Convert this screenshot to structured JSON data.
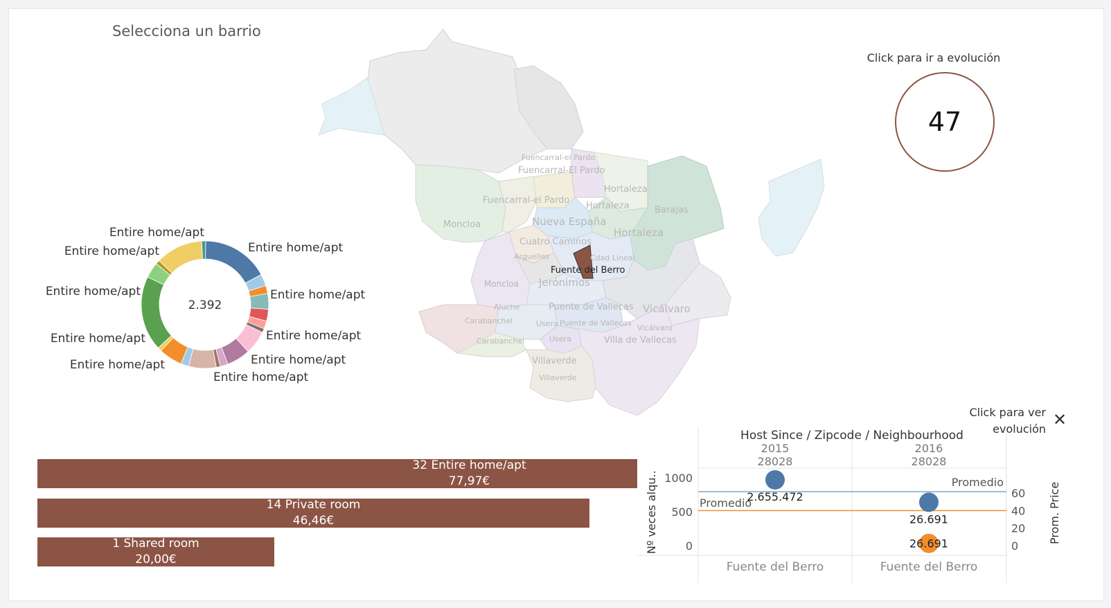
{
  "page_title": "Selecciona un barrio",
  "kpi": {
    "label": "Click para ir a evolución",
    "value": "47"
  },
  "donut": {
    "center_value": "2.392",
    "labels": [
      "Entire home/apt",
      "Entire home/apt",
      "Entire home/apt",
      "Entire home/apt",
      "Entire home/apt",
      "Entire home/apt",
      "Entire home/apt",
      "Entire home/apt",
      "Entire home/apt",
      "Entire home/apt",
      "Entire home/apt"
    ],
    "segments": [
      {
        "color": "#4e79a7",
        "value": 17
      },
      {
        "color": "#a0cbe8",
        "value": 3
      },
      {
        "color": "#f28e2b",
        "value": 2
      },
      {
        "color": "#86bcb6",
        "value": 4
      },
      {
        "color": "#e15759",
        "value": 3
      },
      {
        "color": "#ff9d9a",
        "value": 2
      },
      {
        "color": "#79706e",
        "value": 1
      },
      {
        "color": "#fabfd2",
        "value": 6
      },
      {
        "color": "#b07aa1",
        "value": 6
      },
      {
        "color": "#d4a6c8",
        "value": 2
      },
      {
        "color": "#9d7660",
        "value": 1
      },
      {
        "color": "#d7b5a6",
        "value": 7
      },
      {
        "color": "#a0cbe8",
        "value": 2
      },
      {
        "color": "#f28e2b",
        "value": 6
      },
      {
        "color": "#f1ce63",
        "value": 1
      },
      {
        "color": "#59a14f",
        "value": 19
      },
      {
        "color": "#8cd17d",
        "value": 4
      },
      {
        "color": "#b6992d",
        "value": 1
      },
      {
        "color": "#f1ce63",
        "value": 12
      },
      {
        "color": "#499894",
        "value": 1
      }
    ]
  },
  "map": {
    "selected_label": "Fuente del Berro",
    "selected_color": "#8b5444",
    "district_labels": [
      "Fuencarral-el Pardo",
      "Fuencarral-El Pardo",
      "Hortaleza",
      "Fuencarral-el Pardo",
      "Hortaleza",
      "Barajas",
      "Moncloa",
      "Nueva España",
      "Hortaleza",
      "Cuatro Caminos",
      "Arguelles",
      "Cdad Lineal",
      "Moncloa",
      "Jerónimos",
      "Aluche",
      "Puente de Vallecas",
      "Vicálvaro",
      "Carabanchel",
      "Usera",
      "Puente de Vallecas",
      "Vicálvaro",
      "Carabanchel",
      "Usera",
      "Villa de Vallecas",
      "Villaverde",
      "Villaverde"
    ]
  },
  "bars": [
    {
      "count": "32",
      "type": "Entire home/apt",
      "price": "77,97€",
      "fraction": 1.0
    },
    {
      "count": "14",
      "type": "Private room",
      "price": "46,46€",
      "fraction": 0.92
    },
    {
      "count": "1",
      "type": "Shared room",
      "price": "20,00€",
      "fraction": 0.395
    }
  ],
  "scatter": {
    "header": "Host Since / Zipcode / Neighbourhood",
    "link_label": "Click para ver evolución",
    "columns": [
      {
        "year": "2015",
        "zip": "28028",
        "neighbourhood": "Fuente del Berro"
      },
      {
        "year": "2016",
        "zip": "28028",
        "neighbourhood": "Fuente del Berro"
      }
    ],
    "left_axis_title": "Nº veces alqu..",
    "right_axis_title": "Prom. Price",
    "left_ticks": [
      "1000",
      "500",
      "0"
    ],
    "right_ticks": [
      "60",
      "40",
      "20",
      "0"
    ],
    "promedio_left": "Promedio",
    "promedio_right": "Promedio",
    "colors": {
      "blue": "#4e79a7",
      "orange": "#f28e2b",
      "ref_blue": "#7ea6cc",
      "ref_orange": "#f28e2b"
    },
    "points": [
      {
        "col": 0,
        "series": "count",
        "value": 970,
        "color": "#4e79a7",
        "label": "2.655.472"
      },
      {
        "col": 1,
        "series": "count",
        "value": 640,
        "color": "#4e79a7",
        "label": "26.691"
      },
      {
        "col": 1,
        "series": "price",
        "value": 1,
        "color": "#f28e2b",
        "label": "26.691"
      }
    ],
    "ref_lines": {
      "count": 800,
      "price": 40
    }
  }
}
